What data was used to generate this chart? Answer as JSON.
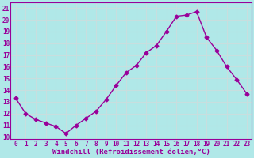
{
  "x": [
    0,
    1,
    2,
    3,
    4,
    5,
    6,
    7,
    8,
    9,
    10,
    11,
    12,
    13,
    14,
    15,
    16,
    17,
    18,
    19,
    20,
    21,
    22,
    23
  ],
  "y": [
    13.3,
    12.0,
    11.5,
    11.2,
    10.9,
    10.3,
    11.0,
    11.6,
    12.2,
    13.2,
    14.4,
    15.5,
    16.1,
    17.2,
    17.8,
    19.0,
    20.3,
    20.4,
    20.7,
    18.5,
    17.4,
    16.0,
    14.9,
    13.7
  ],
  "line_color": "#990099",
  "marker": "D",
  "marker_size": 2.5,
  "bg_color": "#b0e8e8",
  "grid_color": "#c8dede",
  "xlabel": "Windchill (Refroidissement éolien,°C)",
  "yticks": [
    10,
    11,
    12,
    13,
    14,
    15,
    16,
    17,
    18,
    19,
    20,
    21
  ],
  "xticks": [
    0,
    1,
    2,
    3,
    4,
    5,
    6,
    7,
    8,
    9,
    10,
    11,
    12,
    13,
    14,
    15,
    16,
    17,
    18,
    19,
    20,
    21,
    22,
    23
  ],
  "ylim": [
    9.8,
    21.5
  ],
  "xlim": [
    -0.5,
    23.5
  ],
  "tick_color": "#990099",
  "axis_color": "#990099",
  "tick_fontsize": 5.5,
  "xlabel_fontsize": 6.5
}
